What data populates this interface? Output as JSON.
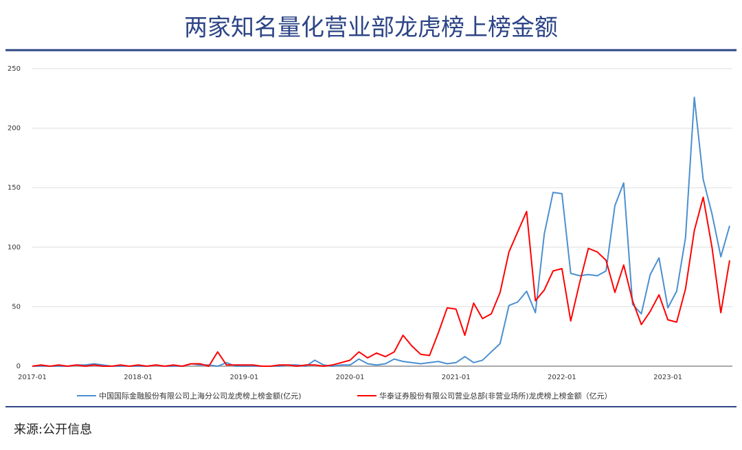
{
  "chart_data": {
    "type": "line",
    "title": "两家知名量化营业部龙虎榜上榜金额",
    "source": "来源:公开信息",
    "categories": [
      "2017-01",
      null,
      null,
      null,
      null,
      null,
      null,
      null,
      null,
      null,
      null,
      null,
      "2018-01",
      null,
      null,
      null,
      null,
      null,
      null,
      null,
      null,
      null,
      null,
      null,
      "2019-01",
      null,
      null,
      null,
      null,
      null,
      null,
      null,
      null,
      null,
      null,
      null,
      "2020-01",
      null,
      null,
      null,
      null,
      null,
      null,
      null,
      null,
      null,
      null,
      null,
      "2021-01",
      null,
      null,
      null,
      null,
      null,
      null,
      null,
      null,
      null,
      null,
      null,
      "2022-01",
      null,
      null,
      null,
      null,
      null,
      null,
      null,
      null,
      null,
      null,
      null,
      "2023-01",
      null,
      null,
      null,
      null,
      null,
      null,
      null
    ],
    "series": [
      {
        "name": "中国国际金融股份有限公司上海分公司龙虎榜上榜金额(亿元)",
        "color": "#4a8fd0",
        "values": [
          0,
          0,
          0,
          0,
          0,
          1,
          1,
          2,
          1,
          0,
          0,
          0,
          0,
          0,
          1,
          0,
          0,
          0,
          2,
          1,
          1,
          0,
          3,
          0,
          0,
          0,
          0,
          0,
          0,
          1,
          1,
          0,
          5,
          1,
          0,
          1,
          1,
          6,
          2,
          1,
          2,
          6,
          4,
          3,
          2,
          3,
          4,
          2,
          3,
          8,
          3,
          5,
          12,
          19,
          51,
          54,
          63,
          45,
          111,
          146,
          145,
          78,
          76,
          77,
          76,
          80,
          135,
          154,
          52,
          44,
          77,
          91,
          49,
          63,
          108,
          226,
          157,
          128,
          92,
          118
        ]
      },
      {
        "name": "华泰证券股份有限公司营业总部(非营业场所)龙虎榜上榜金额（亿元）",
        "color": "#ff0000",
        "values": [
          0,
          1,
          0,
          1,
          0,
          1,
          0,
          1,
          0,
          0,
          1,
          0,
          1,
          0,
          1,
          0,
          1,
          0,
          2,
          2,
          0,
          12,
          1,
          1,
          1,
          1,
          0,
          0,
          1,
          1,
          0,
          1,
          1,
          0,
          1,
          3,
          5,
          12,
          7,
          11,
          8,
          12,
          26,
          17,
          10,
          9,
          28,
          49,
          48,
          26,
          53,
          40,
          44,
          62,
          96,
          113,
          130,
          55,
          64,
          80,
          82,
          38,
          70,
          99,
          96,
          89,
          62,
          85,
          55,
          35,
          46,
          60,
          39,
          37,
          65,
          114,
          142,
          100,
          45,
          89
        ]
      }
    ],
    "ylim": [
      0,
      250
    ],
    "yticks": [
      0,
      50,
      100,
      150,
      200,
      250
    ],
    "grid": true,
    "legend": "bottom"
  }
}
